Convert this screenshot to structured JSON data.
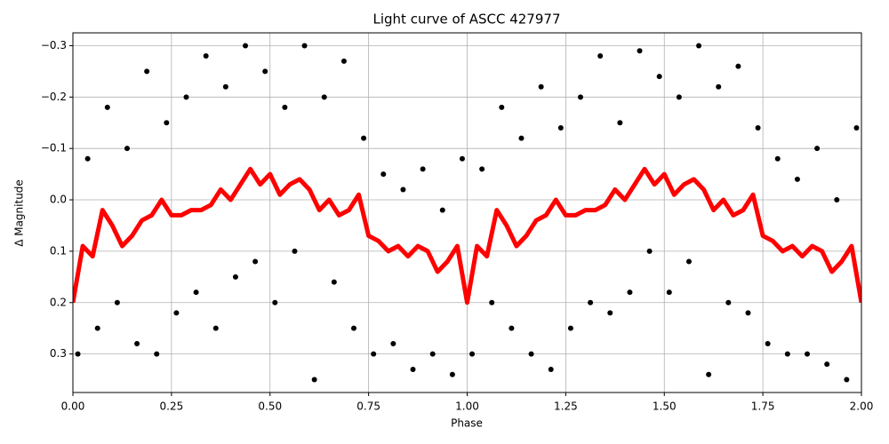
{
  "chart_data": {
    "type": "scatter",
    "title": "Light curve of ASCC 427977",
    "x_label": "Phase",
    "y_label": "Δ Magnitude",
    "xlim": [
      0,
      2
    ],
    "ylim": [
      0.375,
      -0.325
    ],
    "inverted_y": true,
    "grid": true,
    "xticks": [
      {
        "value": 0,
        "label": "0.00"
      },
      {
        "value": 0.25,
        "label": "0.25"
      },
      {
        "value": 0.5,
        "label": "0.50"
      },
      {
        "value": 0.75,
        "label": "0.75"
      },
      {
        "value": 1,
        "label": "1.00"
      },
      {
        "value": 1.25,
        "label": "1.25"
      },
      {
        "value": 1.5,
        "label": "1.50"
      },
      {
        "value": 1.75,
        "label": "1.75"
      },
      {
        "value": 2,
        "label": "2.00"
      }
    ],
    "yticks": [
      {
        "value": -0.3,
        "label": "−0.3"
      },
      {
        "value": -0.2,
        "label": "−0.2"
      },
      {
        "value": -0.1,
        "label": "−0.1"
      },
      {
        "value": 0,
        "label": "0.0"
      },
      0.1,
      0.2,
      0.3
    ],
    "series": [
      {
        "type": "scatter",
        "color": "#000000",
        "x": [
          0.0125,
          0.0375,
          0.0625,
          0.0875,
          0.1125,
          0.1375,
          0.1625,
          0.1875,
          0.2125,
          0.2375,
          0.2625,
          0.2875,
          0.3125,
          0.3375,
          0.3625,
          0.3875,
          0.4125,
          0.4375,
          0.4625,
          0.4875,
          0.5125,
          0.5375,
          0.5625,
          0.5875,
          0.6125,
          0.6375,
          0.6625,
          0.6875,
          0.7125,
          0.7375,
          0.7625,
          0.7875,
          0.8125,
          0.8375,
          0.8625,
          0.8875,
          0.9125,
          0.9375,
          0.9625,
          0.9875,
          1.0125,
          1.0375,
          1.0625,
          1.0875,
          1.1125,
          1.1375,
          1.1625,
          1.1875,
          1.2125,
          1.2375,
          1.2625,
          1.2875,
          1.3125,
          1.3375,
          1.3625,
          1.3875,
          1.4125,
          1.4375,
          1.4625,
          1.4875,
          1.5125,
          1.5375,
          1.5625,
          1.5875,
          1.6125,
          1.6375,
          1.6625,
          1.6875,
          1.7125,
          1.7375,
          1.7625,
          1.7875,
          1.8125,
          1.8375,
          1.8625,
          1.8875,
          1.9125,
          1.9375,
          1.9625,
          1.9875
        ],
        "values": [
          0.3,
          -0.08,
          0.25,
          -0.18,
          0.2,
          -0.1,
          0.28,
          -0.25,
          0.3,
          -0.15,
          0.22,
          -0.2,
          0.18,
          -0.28,
          0.25,
          -0.22,
          0.15,
          -0.3,
          0.12,
          -0.25,
          0.2,
          -0.18,
          0.1,
          -0.3,
          0.35,
          -0.2,
          0.16,
          -0.27,
          0.25,
          -0.12,
          0.3,
          -0.05,
          0.28,
          -0.02,
          0.33,
          -0.06,
          0.3,
          0.02,
          0.34,
          -0.08,
          0.3,
          -0.06,
          0.2,
          -0.18,
          0.25,
          -0.12,
          0.3,
          -0.22,
          0.33,
          -0.14,
          0.25,
          -0.2,
          0.2,
          -0.28,
          0.22,
          -0.15,
          0.18,
          -0.29,
          0.1,
          -0.24,
          0.18,
          -0.2,
          0.12,
          -0.3,
          0.34,
          -0.22,
          0.2,
          -0.26,
          0.22,
          -0.14,
          0.28,
          -0.08,
          0.3,
          -0.04,
          0.3,
          -0.1,
          0.32,
          0.0,
          0.35,
          -0.14
        ]
      },
      {
        "type": "line",
        "color": "#ff0000",
        "x": [
          0,
          0.025,
          0.05,
          0.075,
          0.1,
          0.125,
          0.15,
          0.175,
          0.2,
          0.225,
          0.25,
          0.275,
          0.3,
          0.325,
          0.35,
          0.375,
          0.4,
          0.425,
          0.45,
          0.475,
          0.5,
          0.525,
          0.55,
          0.575,
          0.6,
          0.625,
          0.65,
          0.675,
          0.7,
          0.725,
          0.75,
          0.775,
          0.8,
          0.825,
          0.85,
          0.875,
          0.9,
          0.925,
          0.95,
          0.975,
          1,
          1.025,
          1.05,
          1.075,
          1.1,
          1.125,
          1.15,
          1.175,
          1.2,
          1.225,
          1.25,
          1.275,
          1.3,
          1.325,
          1.35,
          1.375,
          1.4,
          1.425,
          1.45,
          1.475,
          1.5,
          1.525,
          1.55,
          1.575,
          1.6,
          1.625,
          1.65,
          1.675,
          1.7,
          1.725,
          1.75,
          1.775,
          1.8,
          1.825,
          1.85,
          1.875,
          1.9,
          1.925,
          1.95,
          1.975,
          2
        ],
        "values": [
          0.2,
          0.09,
          0.11,
          0.02,
          0.05,
          0.09,
          0.07,
          0.04,
          0.03,
          0.0,
          0.03,
          0.03,
          0.02,
          0.02,
          0.01,
          -0.02,
          0.0,
          -0.03,
          -0.06,
          -0.03,
          -0.05,
          -0.01,
          -0.03,
          -0.04,
          -0.02,
          0.02,
          0.0,
          0.03,
          0.02,
          -0.01,
          0.07,
          0.08,
          0.1,
          0.09,
          0.11,
          0.09,
          0.1,
          0.14,
          0.12,
          0.09,
          0.2,
          0.09,
          0.11,
          0.02,
          0.05,
          0.09,
          0.07,
          0.04,
          0.03,
          0.0,
          0.03,
          0.03,
          0.02,
          0.02,
          0.01,
          -0.02,
          0.0,
          -0.03,
          -0.06,
          -0.03,
          -0.05,
          -0.01,
          -0.03,
          -0.04,
          -0.02,
          0.02,
          0.0,
          0.03,
          0.02,
          -0.01,
          0.07,
          0.08,
          0.1,
          0.09,
          0.11,
          0.09,
          0.1,
          0.14,
          0.12,
          0.09,
          0.2
        ]
      }
    ]
  }
}
